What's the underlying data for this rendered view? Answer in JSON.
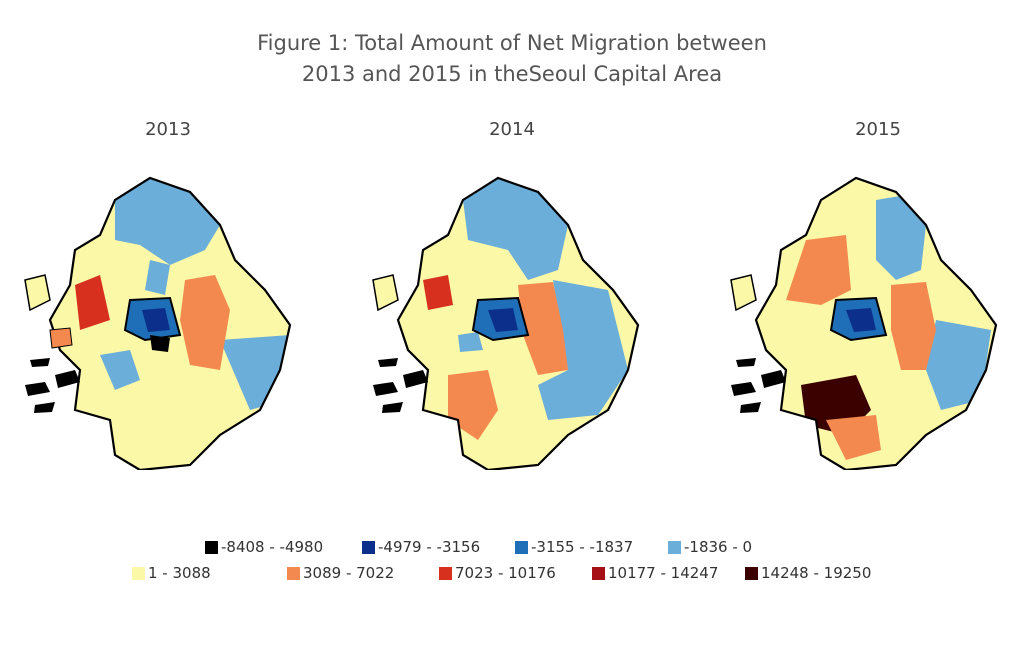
{
  "title": {
    "line1": "Figure 1: Total Amount of Net Migration between",
    "line2": "2013 and 2015 in theSeoul Capital Area"
  },
  "panels": [
    {
      "year": "2013"
    },
    {
      "year": "2014"
    },
    {
      "year": "2015"
    }
  ],
  "legend": [
    {
      "label": "-8408 - -4980",
      "color": "#000000"
    },
    {
      "label": "-4979 - -3156",
      "color": "#0b2f8a"
    },
    {
      "label": "-3155 - -1837",
      "color": "#1f6fb8"
    },
    {
      "label": "-1836 - 0",
      "color": "#6aaed9"
    },
    {
      "label": "1 - 3088",
      "color": "#fbf8a8"
    },
    {
      "label": "3089 - 7022",
      "color": "#f4894f"
    },
    {
      "label": "7023 - 10176",
      "color": "#d7301f"
    },
    {
      "label": "10177 - 14247",
      "color": "#a50f15"
    },
    {
      "label": "14248 - 19250",
      "color": "#3b0000"
    }
  ]
}
